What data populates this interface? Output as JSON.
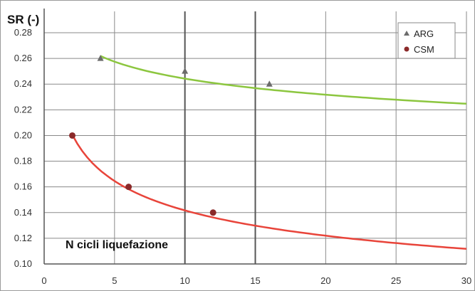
{
  "chart_data": {
    "type": "scatter",
    "ylabel": "SR (-)",
    "annotation": "N cicli liquefazione",
    "x_ticks": [
      "0",
      "5",
      "10",
      "15",
      "20",
      "25",
      "30"
    ],
    "y_ticks": [
      "0.10",
      "0.12",
      "0.14",
      "0.16",
      "0.18",
      "0.20",
      "0.22",
      "0.24",
      "0.26",
      "0.28"
    ],
    "xlim": [
      0,
      30
    ],
    "ylim": [
      0.1,
      0.28
    ],
    "grid": true,
    "legend_position": "top-right",
    "series": [
      {
        "name": "ARG",
        "marker": "triangle",
        "point_color": "#6b6b6b",
        "curve_color": "#8cc63f",
        "points": [
          [
            4,
            0.26
          ],
          [
            10,
            0.25
          ],
          [
            16,
            0.24
          ]
        ],
        "fit": {
          "a": 0.291,
          "b": -0.076,
          "x_start": 4,
          "x_end": 30
        }
      },
      {
        "name": "CSM",
        "marker": "circle",
        "point_color": "#8b2a2a",
        "curve_color": "#e8443a",
        "points": [
          [
            2,
            0.2
          ],
          [
            6,
            0.16
          ],
          [
            12,
            0.14
          ]
        ],
        "fit": {
          "a": 0.233,
          "b": -0.216,
          "x_start": 2,
          "x_end": 30
        }
      }
    ]
  }
}
